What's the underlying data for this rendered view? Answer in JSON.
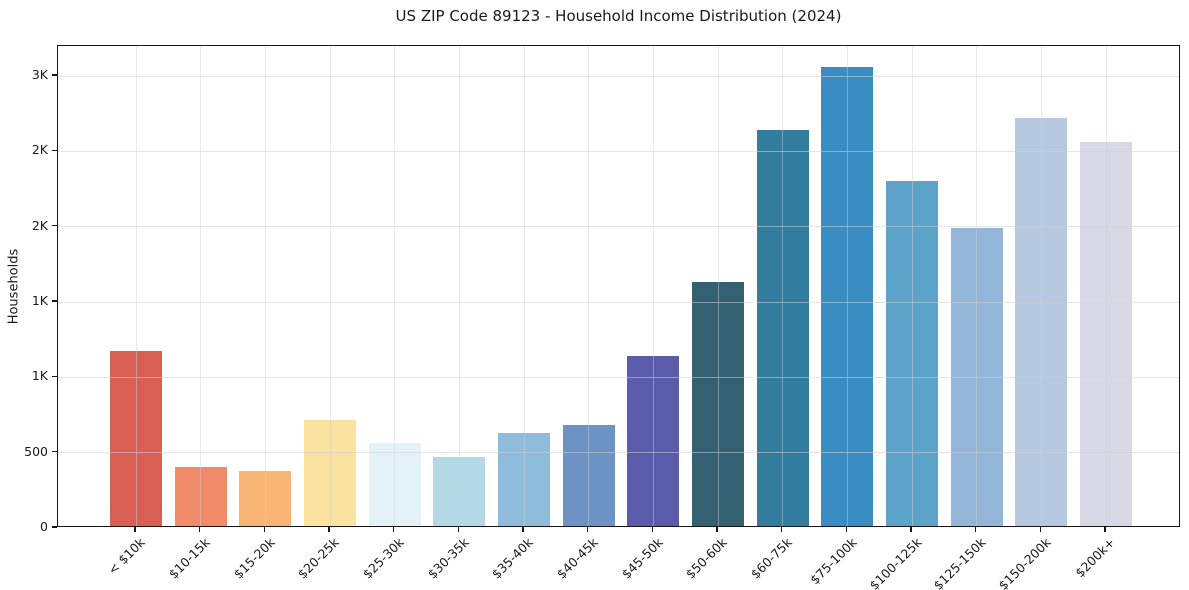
{
  "title": "US ZIP Code 89123 - Household Income Distribution (2024)",
  "chart_data": {
    "type": "bar",
    "title": "US ZIP Code 89123 - Household Income Distribution (2024)",
    "xlabel": "",
    "ylabel": "Households",
    "categories": [
      "< $10k",
      "$10-15k",
      "$15-20k",
      "$20-25k",
      "$25-30k",
      "$30-35k",
      "$35-40k",
      "$40-45k",
      "$45-50k",
      "$50-60k",
      "$60-75k",
      "$75-100k",
      "$100-125k",
      "$125-150k",
      "$150-200k",
      "$200k+"
    ],
    "values": [
      1160,
      395,
      365,
      705,
      550,
      460,
      620,
      670,
      1130,
      1620,
      2630,
      3050,
      2290,
      1980,
      2710,
      2550
    ],
    "bar_colors": [
      "#d95f55",
      "#f08a68",
      "#f9b576",
      "#fce2a0",
      "#e4f1f7",
      "#b4d8e6",
      "#8fbcda",
      "#6d92c4",
      "#5a5cab",
      "#336172",
      "#327c9e",
      "#398dc3",
      "#5ba3c9",
      "#92b5d8",
      "#b7c8e1",
      "#d8d9e6"
    ],
    "ylim": [
      0,
      3200
    ],
    "yticks": {
      "values": [
        0,
        500,
        1000,
        1500,
        2000,
        2500,
        3000
      ],
      "labels": [
        "0",
        "500",
        "1K",
        "1K",
        "2K",
        "2K",
        "3K"
      ]
    },
    "xtick_rotation_deg": 45,
    "grid": "horizontal and vertical light-gray gridlines drawn over bars",
    "legend": "none"
  }
}
